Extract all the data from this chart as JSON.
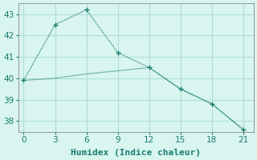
{
  "line1_x": [
    0,
    3,
    6,
    9,
    12,
    15,
    18,
    21
  ],
  "line1_y": [
    39.9,
    42.5,
    43.2,
    41.2,
    40.5,
    39.5,
    38.8,
    37.6
  ],
  "line2_x": [
    0,
    3,
    6,
    9,
    12,
    15,
    18,
    21
  ],
  "line2_y": [
    39.9,
    40.0,
    40.2,
    40.35,
    40.5,
    39.5,
    38.8,
    37.6
  ],
  "line_color": "#1a7a6e",
  "bg_color": "#d8f5f0",
  "grid_color": "#b0ddd8",
  "xlabel": "Humidex (Indice chaleur)",
  "xlim": [
    -0.5,
    22
  ],
  "ylim": [
    37.5,
    43.5
  ],
  "xticks": [
    0,
    3,
    6,
    9,
    12,
    15,
    18,
    21
  ],
  "yticks": [
    38,
    39,
    40,
    41,
    42,
    43
  ],
  "xlabel_fontsize": 8,
  "tick_fontsize": 7.5
}
